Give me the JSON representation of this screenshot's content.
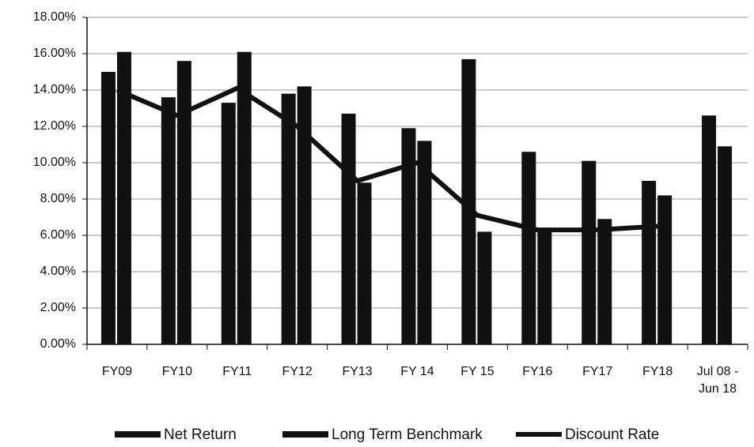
{
  "chart_data": {
    "type": "bar",
    "categories": [
      "FY09",
      "FY10",
      "FY11",
      "FY12",
      "FY13",
      "FY 14",
      "FY 15",
      "FY16",
      "FY17",
      "FY18",
      "Jul 08 - Jun 18"
    ],
    "series": [
      {
        "name": "Net Return",
        "color": "#111111",
        "values": [
          15.0,
          13.6,
          13.3,
          13.8,
          12.7,
          11.9,
          15.7,
          10.6,
          10.1,
          9.0,
          12.6
        ]
      },
      {
        "name": "Long Term Benchmark",
        "color": "#111111",
        "values": [
          16.1,
          15.6,
          16.1,
          14.2,
          8.9,
          11.2,
          6.2,
          6.4,
          6.9,
          8.2,
          10.9
        ]
      },
      {
        "name": "Discount Rate",
        "type": "line",
        "color": "#111111",
        "values": [
          14.0,
          12.6,
          14.1,
          12.0,
          9.0,
          10.0,
          7.1,
          6.3,
          6.3,
          6.5,
          null
        ]
      }
    ],
    "ylim": [
      0,
      18
    ],
    "yticks": [
      {
        "value": 0,
        "label": "0.00%"
      },
      {
        "value": 2,
        "label": "2.00%"
      },
      {
        "value": 4,
        "label": "4.00%"
      },
      {
        "value": 6,
        "label": "6.00%"
      },
      {
        "value": 8,
        "label": "8.00%"
      },
      {
        "value": 10,
        "label": "10.00%"
      },
      {
        "value": 12,
        "label": "12.00%"
      },
      {
        "value": 14,
        "label": "14.00%"
      },
      {
        "value": 16,
        "label": "16.00%"
      },
      {
        "value": 18,
        "label": "18.00%"
      }
    ],
    "grid": true,
    "legend": "bottom"
  }
}
